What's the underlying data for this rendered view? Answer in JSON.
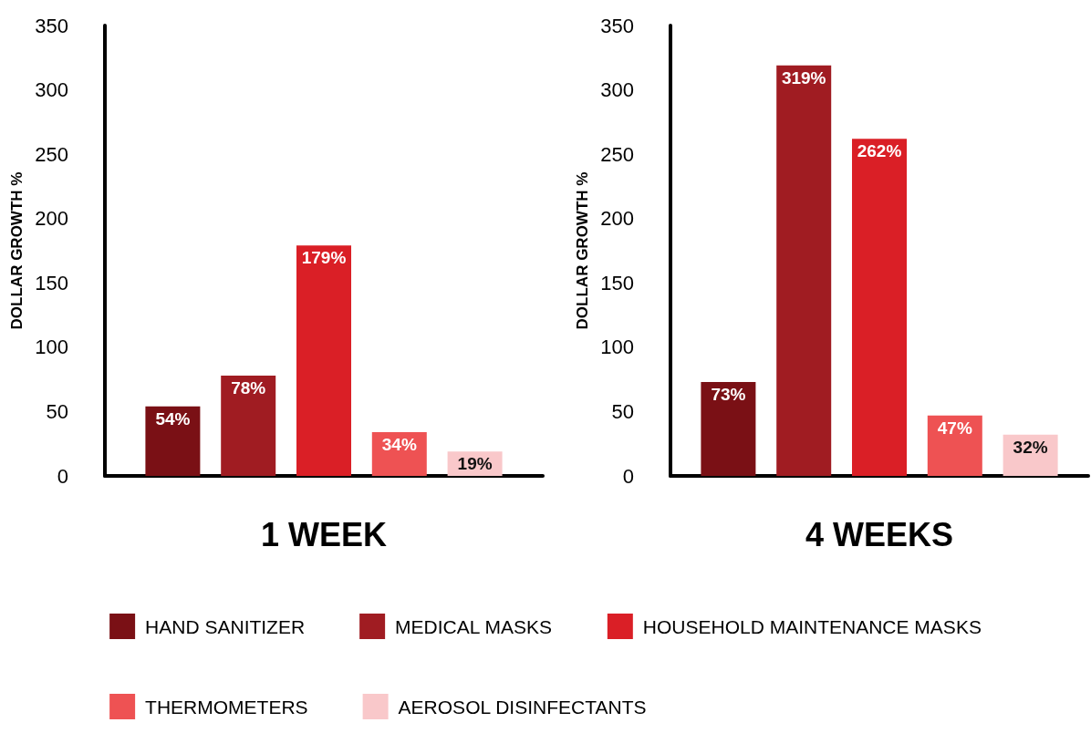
{
  "chart_data": [
    {
      "type": "bar",
      "xlabel": "1 WEEK",
      "ylabel": "DOLLAR GROWTH %",
      "categories": [
        null
      ],
      "ylim": [
        0,
        350
      ],
      "yticks": [
        0,
        50,
        100,
        150,
        200,
        250,
        300,
        350
      ],
      "grid": false,
      "legend": "bottom",
      "series": [
        {
          "name": "HAND SANITIZER",
          "color": "#7a1015",
          "values": [
            54
          ],
          "value_labels": [
            "54%"
          ]
        },
        {
          "name": "MEDICAL MASKS",
          "color": "#a01c22",
          "values": [
            78
          ],
          "value_labels": [
            "78%"
          ]
        },
        {
          "name": "HOUSEHOLD MAINTENANCE MASKS",
          "color": "#da1f26",
          "values": [
            179
          ],
          "value_labels": [
            "179%"
          ]
        },
        {
          "name": "THERMOMETERS",
          "color": "#ee5253",
          "values": [
            34
          ],
          "value_labels": [
            "34%"
          ]
        },
        {
          "name": "AEROSOL DISINFECTANTS",
          "color": "#f9c8ca",
          "values": [
            19
          ],
          "value_labels": [
            "19%"
          ]
        }
      ]
    },
    {
      "type": "bar",
      "xlabel": "4 WEEKS",
      "ylabel": "DOLLAR GROWTH %",
      "categories": [
        null
      ],
      "ylim": [
        0,
        350
      ],
      "yticks": [
        0,
        50,
        100,
        150,
        200,
        250,
        300,
        350
      ],
      "grid": false,
      "series": [
        {
          "color": "#7a1015",
          "values": [
            73
          ],
          "value_labels": [
            "73%"
          ]
        },
        {
          "color": "#a01c22",
          "values": [
            319
          ],
          "value_labels": [
            "319%"
          ]
        },
        {
          "color": "#da1f26",
          "values": [
            262
          ],
          "value_labels": [
            "262%"
          ]
        },
        {
          "color": "#ee5253",
          "values": [
            47
          ],
          "value_labels": [
            "47%"
          ]
        },
        {
          "color": "#f9c8ca",
          "values": [
            32
          ],
          "value_labels": [
            "32%"
          ]
        }
      ]
    }
  ]
}
